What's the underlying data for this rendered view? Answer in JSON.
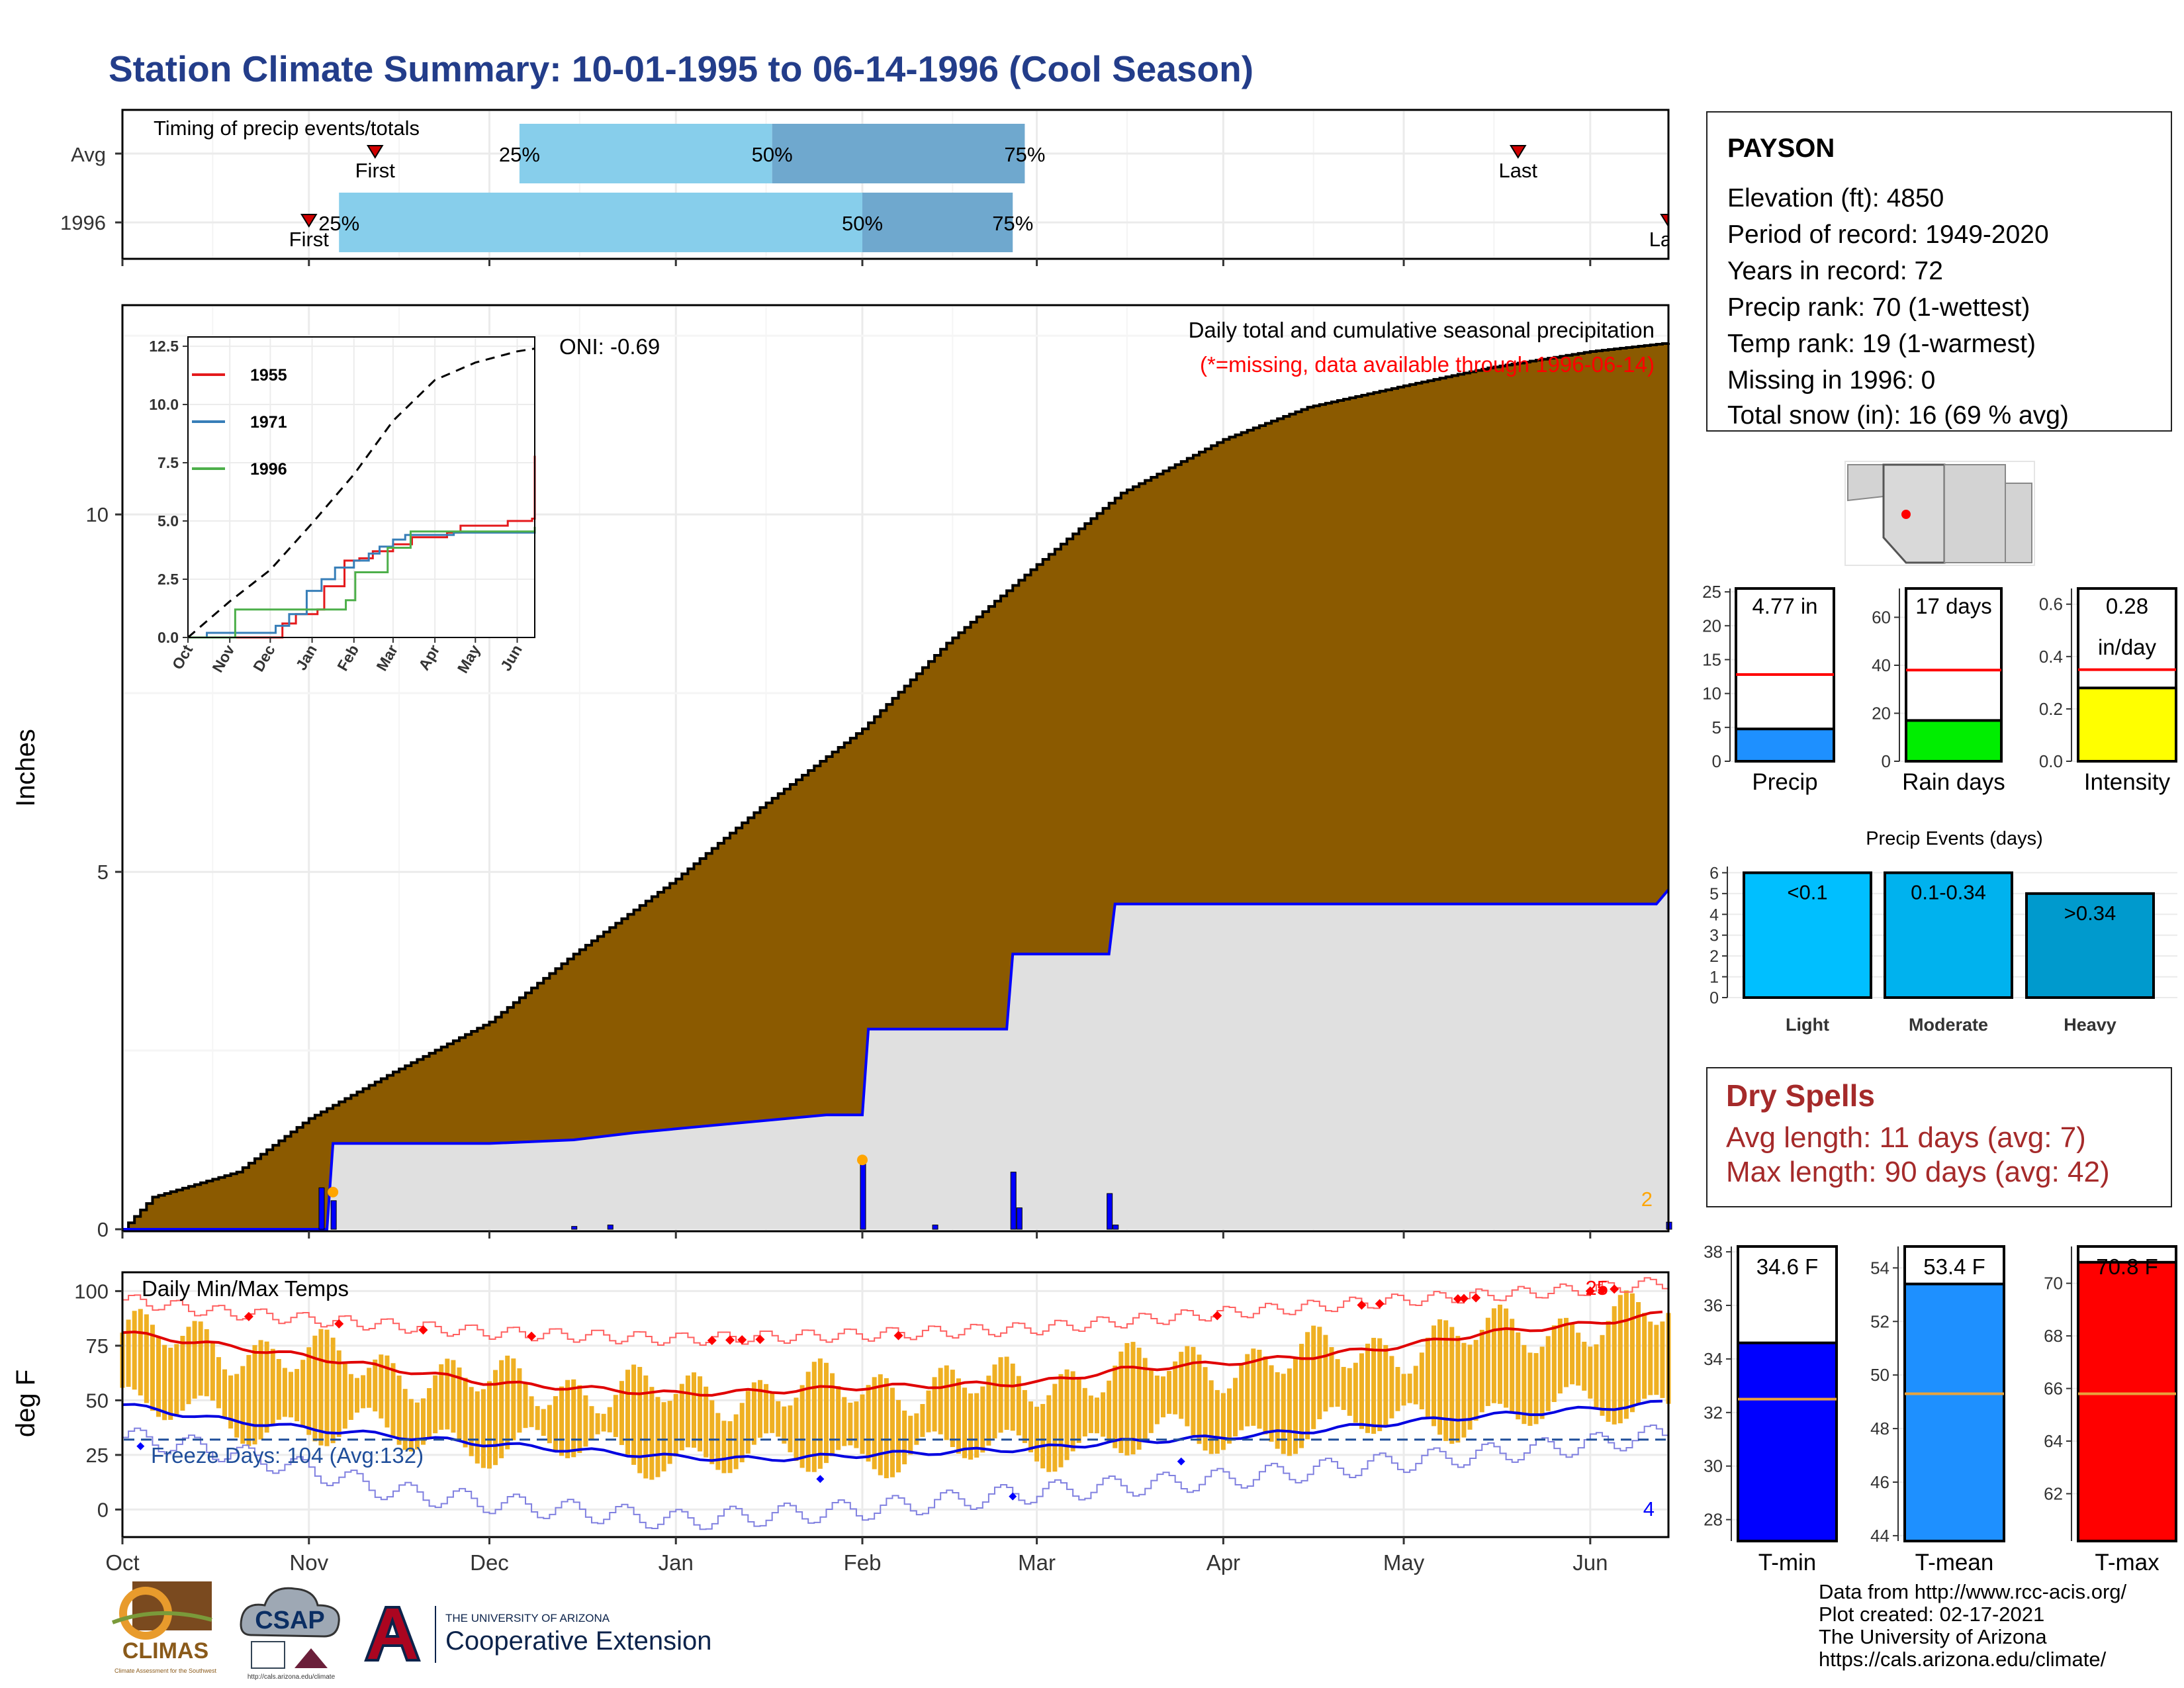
{
  "title": "Station Climate Summary: 10-01-1995 to 06-14-1996 (Cool Season)",
  "timing": {
    "label": "Timing of precip events/totals",
    "rows": [
      {
        "name": "Avg",
        "first_date": "1995-11-12",
        "last_date": "1996-05-20",
        "q25": "1995-12-06",
        "q50": "1996-01-17",
        "q75": "1996-02-28",
        "pct_labels": [
          "25%",
          "50%",
          "75%"
        ],
        "first_label": "First",
        "last_label": "Last"
      },
      {
        "name": "1996",
        "first_date": "1995-11-01",
        "last_date": "1996-06-14",
        "q25": "1995-11-06",
        "q50": "1996-02-01",
        "q75": "1996-02-26",
        "pct_labels": [
          "25%",
          "50%",
          "75%"
        ],
        "first_label": "First",
        "last_label": "Last"
      }
    ],
    "colors": {
      "light": "#87ceeb",
      "dark": "#6fa8ce",
      "marker": "#d00000"
    }
  },
  "chart_data": [
    {
      "type": "area",
      "id": "precip",
      "annotation": "Daily total and cumulative seasonal precipitation",
      "missing_note": "(*=missing, data available through 1996-06-14)",
      "oni_label": "ONI: -0.69",
      "ylabel": "Inches",
      "ylim": [
        0,
        12.9
      ],
      "yticks": [
        0,
        5,
        10
      ],
      "x_range": [
        "1995-10-01",
        "1996-06-14"
      ],
      "x_ticks": [
        "Oct",
        "Nov",
        "Dec",
        "Jan",
        "Feb",
        "Mar",
        "Apr",
        "May",
        "Jun"
      ],
      "series": [
        {
          "name": "Avg cumulative",
          "color": "#8b5a00",
          "x": [
            "1995-10-01",
            "1995-10-06",
            "1995-10-20",
            "1995-11-01",
            "1995-11-15",
            "1995-12-01",
            "1995-12-15",
            "1996-01-01",
            "1996-01-15",
            "1996-02-01",
            "1996-02-15",
            "1996-03-01",
            "1996-03-15",
            "1996-04-01",
            "1996-04-15",
            "1996-05-01",
            "1996-05-15",
            "1996-06-01",
            "1996-06-14"
          ],
          "values": [
            0,
            0.45,
            0.8,
            1.55,
            2.2,
            2.9,
            3.85,
            4.9,
            5.9,
            7.0,
            8.2,
            9.3,
            10.3,
            11.05,
            11.5,
            11.8,
            12.05,
            12.28,
            12.4
          ]
        },
        {
          "name": "1996 cumulative",
          "color": "#0000ff",
          "x": [
            "1995-10-01",
            "1995-11-04",
            "1995-11-05",
            "1995-12-01",
            "1995-12-15",
            "1995-12-25",
            "1996-01-26",
            "1996-02-01",
            "1996-02-02",
            "1996-02-25",
            "1996-02-26",
            "1996-03-13",
            "1996-03-14",
            "1996-06-12",
            "1996-06-14"
          ],
          "values": [
            0,
            0,
            1.2,
            1.2,
            1.25,
            1.35,
            1.6,
            1.6,
            2.8,
            2.8,
            3.85,
            3.85,
            4.55,
            4.55,
            4.75
          ]
        },
        {
          "name": "Daily total",
          "color": "#0000ff",
          "x": [
            "1995-11-03",
            "1995-11-05",
            "1995-12-15",
            "1995-12-21",
            "1996-02-01",
            "1996-02-13",
            "1996-02-26",
            "1996-02-27",
            "1996-03-13",
            "1996-03-14",
            "1996-06-14"
          ],
          "values": [
            0.58,
            0.4,
            0.04,
            0.06,
            0.95,
            0.06,
            0.8,
            0.3,
            0.5,
            0.06,
            0.1
          ]
        }
      ],
      "right_count": "2"
    },
    {
      "type": "line",
      "id": "inset",
      "legend": [
        "1955",
        "1971",
        "1996"
      ],
      "legend_colors": [
        "#e41a1c",
        "#377eb8",
        "#4daf4a"
      ],
      "ylim": [
        0,
        12.9
      ],
      "yticks": [
        0.0,
        2.5,
        5.0,
        7.5,
        10.0,
        12.5
      ],
      "x_range": [
        "1995-10-01",
        "1996-06-14"
      ],
      "x_ticks": [
        "Oct",
        "Nov",
        "Dec",
        "Jan",
        "Feb",
        "Mar",
        "Apr",
        "May",
        "Jun"
      ],
      "series": [
        {
          "name": "1955",
          "color": "#e41a1c",
          "x": [
            "1995-10-01",
            "1995-12-01",
            "1995-12-10",
            "1995-12-20",
            "1996-01-05",
            "1996-01-10",
            "1996-01-25",
            "1996-02-05",
            "1996-02-15",
            "1996-03-01",
            "1996-03-15",
            "1996-04-10",
            "1996-04-20",
            "1996-05-25",
            "1996-06-12",
            "1996-06-14"
          ],
          "values": [
            0,
            0,
            0.6,
            1.0,
            1.2,
            2.2,
            3.3,
            3.4,
            3.7,
            4.0,
            4.3,
            4.5,
            4.8,
            5.0,
            5.1,
            7.8
          ]
        },
        {
          "name": "1971",
          "color": "#377eb8",
          "x": [
            "1995-10-01",
            "1995-10-15",
            "1995-12-05",
            "1995-12-15",
            "1995-12-28",
            "1996-01-08",
            "1996-01-18",
            "1996-02-01",
            "1996-02-12",
            "1996-02-20",
            "1996-03-01",
            "1996-03-10",
            "1996-04-15",
            "1996-06-14"
          ],
          "values": [
            0,
            0.2,
            0.5,
            1.0,
            2.0,
            2.5,
            3.0,
            3.3,
            3.6,
            3.9,
            4.2,
            4.4,
            4.5,
            4.6
          ]
        },
        {
          "name": "1996",
          "color": "#4daf4a",
          "x": [
            "1995-10-01",
            "1995-11-04",
            "1995-11-05",
            "1995-12-01",
            "1996-01-26",
            "1996-02-02",
            "1996-02-26",
            "1996-03-14",
            "1996-06-12",
            "1996-06-14"
          ],
          "values": [
            0,
            0,
            1.2,
            1.2,
            1.6,
            2.8,
            3.85,
            4.55,
            4.55,
            4.75
          ]
        },
        {
          "name": "Avg",
          "color": "#000000",
          "dashed": true,
          "x": [
            "1995-10-01",
            "1995-11-01",
            "1995-12-01",
            "1996-01-01",
            "1996-02-01",
            "1996-03-01",
            "1996-04-01",
            "1996-05-01",
            "1996-06-01",
            "1996-06-14"
          ],
          "values": [
            0,
            1.55,
            2.9,
            4.9,
            7.0,
            9.3,
            11.05,
            11.8,
            12.28,
            12.4
          ]
        }
      ]
    },
    {
      "type": "bar",
      "id": "temps",
      "label": "Daily Min/Max Temps",
      "ylabel": "deg F",
      "ylim": [
        -12,
        108
      ],
      "yticks": [
        0,
        25,
        50,
        75,
        100
      ],
      "x_range": [
        "1995-10-01",
        "1996-06-14"
      ],
      "x_ticks": [
        "Oct",
        "Nov",
        "Dec",
        "Jan",
        "Feb",
        "Mar",
        "Apr",
        "May",
        "Jun"
      ],
      "freeze_line": 32,
      "freeze_label": "Freeze Days: 104 (Avg:132)",
      "right_count_low": "4",
      "right_count_high": "25",
      "series": [
        {
          "name": "Avg max",
          "color": "#e00000",
          "x": [
            "1995-10-01",
            "1995-10-15",
            "1995-11-01",
            "1995-12-01",
            "1996-01-01",
            "1996-01-15",
            "1996-02-01",
            "1996-03-01",
            "1996-03-15",
            "1996-04-01",
            "1996-04-15",
            "1996-05-01",
            "1996-05-15",
            "1996-06-01",
            "1996-06-14"
          ],
          "values": [
            81,
            76,
            70,
            58,
            53,
            54,
            56,
            58,
            64,
            67,
            70,
            75,
            81,
            85,
            90
          ]
        },
        {
          "name": "Avg min",
          "color": "#0000e0",
          "x": [
            "1995-10-01",
            "1995-10-15",
            "1995-11-01",
            "1995-12-01",
            "1996-01-01",
            "1996-01-15",
            "1996-02-01",
            "1996-03-01",
            "1996-03-15",
            "1996-04-01",
            "1996-04-15",
            "1996-05-01",
            "1996-05-15",
            "1996-06-01",
            "1996-06-14"
          ],
          "values": [
            48,
            42,
            37,
            30,
            24,
            23,
            25,
            28,
            31,
            33,
            36,
            40,
            43,
            46,
            49
          ]
        },
        {
          "name": "Record max",
          "color": "#ff6060",
          "x": [
            "1995-10-01",
            "1995-10-15",
            "1995-11-01",
            "1995-12-01",
            "1996-01-01",
            "1996-02-01",
            "1996-03-01",
            "1996-04-01",
            "1996-05-01",
            "1996-06-01",
            "1996-06-14"
          ],
          "values": [
            96,
            91,
            87,
            81,
            78,
            80,
            83,
            90,
            96,
            101,
            104
          ]
        },
        {
          "name": "Record min",
          "color": "#8080e0",
          "x": [
            "1995-10-01",
            "1995-10-15",
            "1995-11-01",
            "1995-11-15",
            "1995-12-01",
            "1996-01-01",
            "1996-02-01",
            "1996-03-01",
            "1996-04-01",
            "1996-05-01",
            "1996-06-01",
            "1996-06-14"
          ],
          "values": [
            33,
            28,
            18,
            8,
            3,
            -5,
            0,
            8,
            14,
            22,
            30,
            35
          ]
        }
      ]
    },
    {
      "type": "bar",
      "id": "precip-bar",
      "title": "4.77 in",
      "xlabel": "Precip",
      "ylim": [
        0,
        25.5
      ],
      "yticks": [
        0,
        5,
        10,
        15,
        20,
        25
      ],
      "value": 4.77,
      "avg_value": 12.8,
      "color": "#1e90ff"
    },
    {
      "type": "bar",
      "id": "raindays-bar",
      "title": "17 days",
      "xlabel": "Rain days",
      "ylim": [
        0,
        72
      ],
      "yticks": [
        0,
        20,
        40,
        60
      ],
      "value": 17,
      "avg_value": 38,
      "color": "#00ee00"
    },
    {
      "type": "bar",
      "id": "intensity-bar",
      "title": "0.28",
      "title2": "in/day",
      "xlabel": "Intensity",
      "ylim": [
        0,
        0.66
      ],
      "yticks": [
        0.0,
        0.2,
        0.4,
        0.6
      ],
      "value": 0.28,
      "avg_value": 0.35,
      "color": "#ffff00"
    },
    {
      "type": "bar",
      "id": "events",
      "title": "Precip Events (days)",
      "categories": [
        "Light",
        "Moderate",
        "Heavy"
      ],
      "bar_labels": [
        "<0.1",
        "0.1-0.34",
        ">0.34"
      ],
      "values": [
        6,
        6,
        5
      ],
      "ylim": [
        0,
        6.3
      ],
      "yticks": [
        0,
        1,
        2,
        3,
        4,
        5,
        6
      ],
      "colors": [
        "#00bfff",
        "#00b2ee",
        "#009acd"
      ]
    },
    {
      "type": "bar",
      "id": "tmin-bar",
      "title": "34.6 F",
      "xlabel": "T-min",
      "ylim": [
        27.2,
        38.2
      ],
      "yticks": [
        28,
        30,
        32,
        34,
        36,
        38
      ],
      "value": 34.6,
      "avg_value": 32.5,
      "color": "#0000ff"
    },
    {
      "type": "bar",
      "id": "tmean-bar",
      "title": "53.4 F",
      "xlabel": "T-mean",
      "ylim": [
        43.8,
        54.8
      ],
      "yticks": [
        44,
        46,
        48,
        50,
        52,
        54
      ],
      "value": 53.4,
      "avg_value": 49.3,
      "color": "#1e90ff"
    },
    {
      "type": "bar",
      "id": "tmax-bar",
      "title": "70.8 F",
      "xlabel": "T-max",
      "ylim": [
        60.2,
        71.4
      ],
      "yticks": [
        62,
        64,
        66,
        68,
        70
      ],
      "value": 70.8,
      "avg_value": 65.8,
      "color": "#ff0000"
    }
  ],
  "station": {
    "name": "PAYSON",
    "lines": [
      "Elevation (ft): 4850",
      "Period of record: 1949-2020",
      "Years in record: 72",
      "Precip rank: 70 (1-wettest)",
      "Temp rank: 19 (1-warmest)",
      "Missing in 1996: 0",
      "Total snow (in): 16 (69 % avg)"
    ]
  },
  "dry_spells": {
    "title": "Dry Spells",
    "lines": [
      "Avg length: 11 days (avg: 7)",
      "Max length: 90 days (avg: 42)"
    ]
  },
  "credits": [
    "Data from http://www.rcc-acis.org/",
    "Plot created: 02-17-2021",
    "The University of Arizona",
    "https://cals.arizona.edu/climate/"
  ],
  "logos": {
    "climas": "CLIMAS",
    "climas_sub": "Climate Assessment for the Southwest",
    "csap": "CSAP",
    "csap_url": "http://cals.arizona.edu/climate",
    "ua_small": "THE UNIVERSITY OF ARIZONA",
    "ua_big": "Cooperative Extension"
  }
}
